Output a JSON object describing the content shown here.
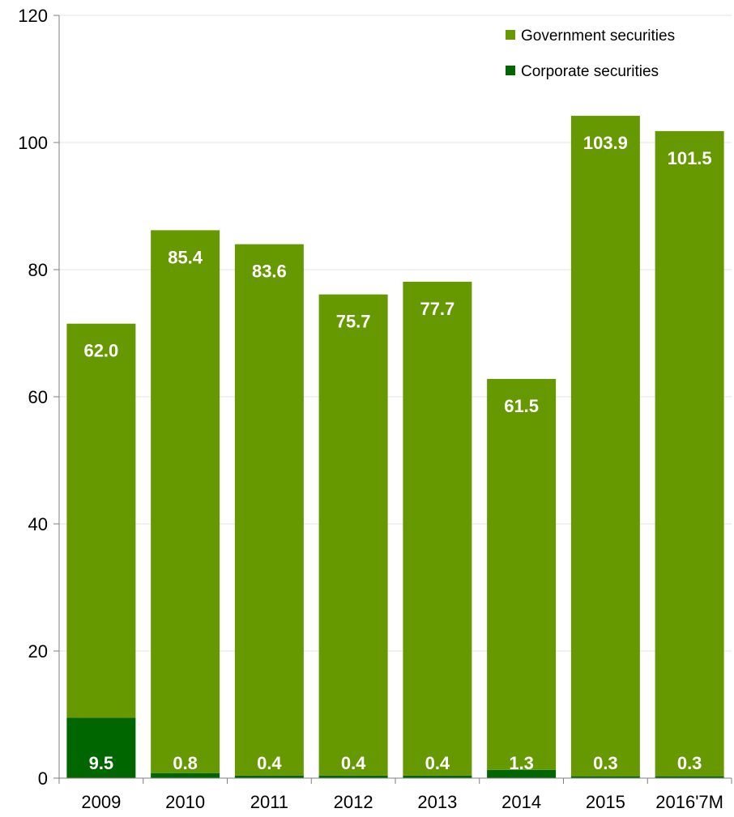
{
  "chart_data": {
    "type": "bar",
    "stacked": true,
    "categories": [
      "2009",
      "2010",
      "2011",
      "2012",
      "2013",
      "2014",
      "2015",
      "2016'7M"
    ],
    "series": [
      {
        "name": "Corporate securities",
        "values": [
          9.5,
          0.8,
          0.4,
          0.4,
          0.4,
          1.3,
          0.3,
          0.3
        ],
        "color": "#006600"
      },
      {
        "name": "Government securities",
        "values": [
          62.0,
          85.4,
          83.6,
          75.7,
          77.7,
          61.5,
          103.9,
          101.5
        ],
        "color": "#669900"
      }
    ],
    "value_labels": {
      "corporate": [
        "9.5",
        "0.8",
        "0.4",
        "0.4",
        "0.4",
        "1.3",
        "0.3",
        "0.3"
      ],
      "government": [
        "62.0",
        "85.4",
        "83.6",
        "75.7",
        "77.7",
        "61.5",
        "103.9",
        "101.5"
      ]
    },
    "ylim": [
      0,
      120
    ],
    "yticks": [
      "0",
      "20",
      "40",
      "60",
      "80",
      "100",
      "120"
    ],
    "grid": true,
    "legend_position": "top-right",
    "legend": [
      "Government securities",
      "Corporate securities"
    ],
    "title": "",
    "xlabel": "",
    "ylabel": ""
  }
}
